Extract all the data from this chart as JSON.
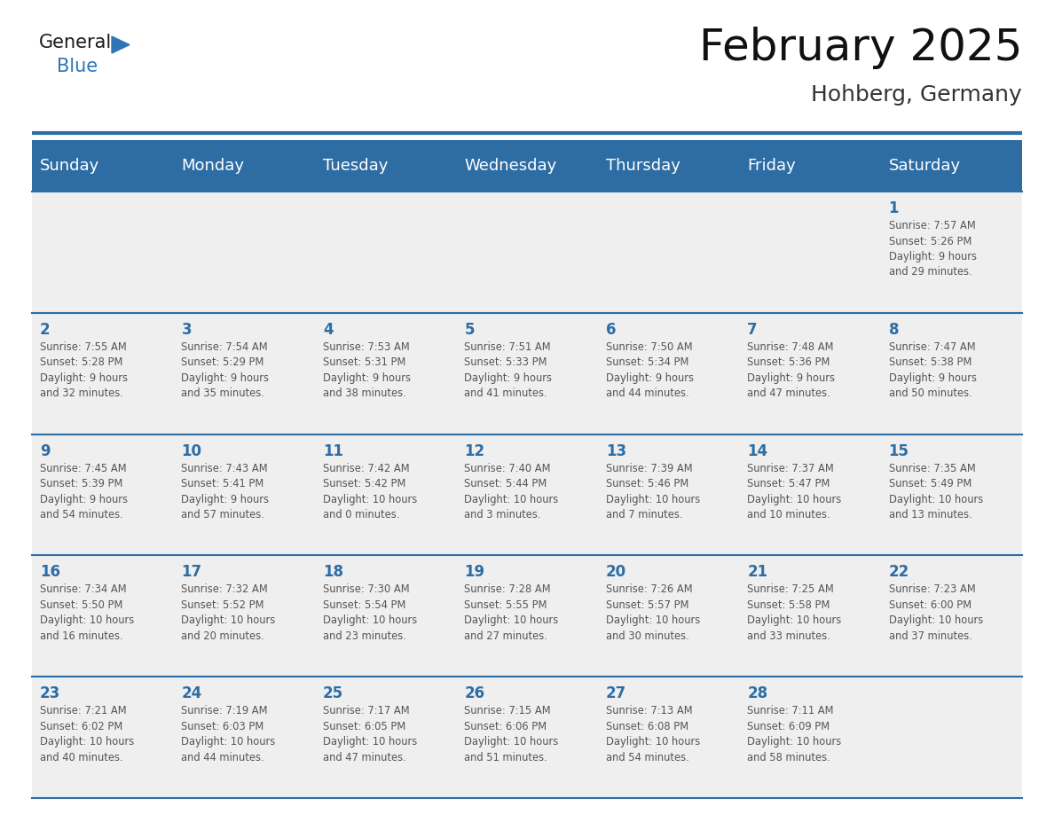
{
  "title": "February 2025",
  "subtitle": "Hohberg, Germany",
  "header_bg": "#2E6DA4",
  "header_text_color": "#FFFFFF",
  "header_font_size": 13,
  "day_names": [
    "Sunday",
    "Monday",
    "Tuesday",
    "Wednesday",
    "Thursday",
    "Friday",
    "Saturday"
  ],
  "title_font_size": 36,
  "subtitle_font_size": 18,
  "cell_bg": "#EFEFEF",
  "day_num_color": "#2E6DA4",
  "text_color": "#555555",
  "line_color": "#2E6DA4",
  "logo_general_color": "#1a1a1a",
  "logo_blue_color": "#2E75B6",
  "weeks": [
    [
      {
        "day": null,
        "info": null
      },
      {
        "day": null,
        "info": null
      },
      {
        "day": null,
        "info": null
      },
      {
        "day": null,
        "info": null
      },
      {
        "day": null,
        "info": null
      },
      {
        "day": null,
        "info": null
      },
      {
        "day": 1,
        "info": "Sunrise: 7:57 AM\nSunset: 5:26 PM\nDaylight: 9 hours\nand 29 minutes."
      }
    ],
    [
      {
        "day": 2,
        "info": "Sunrise: 7:55 AM\nSunset: 5:28 PM\nDaylight: 9 hours\nand 32 minutes."
      },
      {
        "day": 3,
        "info": "Sunrise: 7:54 AM\nSunset: 5:29 PM\nDaylight: 9 hours\nand 35 minutes."
      },
      {
        "day": 4,
        "info": "Sunrise: 7:53 AM\nSunset: 5:31 PM\nDaylight: 9 hours\nand 38 minutes."
      },
      {
        "day": 5,
        "info": "Sunrise: 7:51 AM\nSunset: 5:33 PM\nDaylight: 9 hours\nand 41 minutes."
      },
      {
        "day": 6,
        "info": "Sunrise: 7:50 AM\nSunset: 5:34 PM\nDaylight: 9 hours\nand 44 minutes."
      },
      {
        "day": 7,
        "info": "Sunrise: 7:48 AM\nSunset: 5:36 PM\nDaylight: 9 hours\nand 47 minutes."
      },
      {
        "day": 8,
        "info": "Sunrise: 7:47 AM\nSunset: 5:38 PM\nDaylight: 9 hours\nand 50 minutes."
      }
    ],
    [
      {
        "day": 9,
        "info": "Sunrise: 7:45 AM\nSunset: 5:39 PM\nDaylight: 9 hours\nand 54 minutes."
      },
      {
        "day": 10,
        "info": "Sunrise: 7:43 AM\nSunset: 5:41 PM\nDaylight: 9 hours\nand 57 minutes."
      },
      {
        "day": 11,
        "info": "Sunrise: 7:42 AM\nSunset: 5:42 PM\nDaylight: 10 hours\nand 0 minutes."
      },
      {
        "day": 12,
        "info": "Sunrise: 7:40 AM\nSunset: 5:44 PM\nDaylight: 10 hours\nand 3 minutes."
      },
      {
        "day": 13,
        "info": "Sunrise: 7:39 AM\nSunset: 5:46 PM\nDaylight: 10 hours\nand 7 minutes."
      },
      {
        "day": 14,
        "info": "Sunrise: 7:37 AM\nSunset: 5:47 PM\nDaylight: 10 hours\nand 10 minutes."
      },
      {
        "day": 15,
        "info": "Sunrise: 7:35 AM\nSunset: 5:49 PM\nDaylight: 10 hours\nand 13 minutes."
      }
    ],
    [
      {
        "day": 16,
        "info": "Sunrise: 7:34 AM\nSunset: 5:50 PM\nDaylight: 10 hours\nand 16 minutes."
      },
      {
        "day": 17,
        "info": "Sunrise: 7:32 AM\nSunset: 5:52 PM\nDaylight: 10 hours\nand 20 minutes."
      },
      {
        "day": 18,
        "info": "Sunrise: 7:30 AM\nSunset: 5:54 PM\nDaylight: 10 hours\nand 23 minutes."
      },
      {
        "day": 19,
        "info": "Sunrise: 7:28 AM\nSunset: 5:55 PM\nDaylight: 10 hours\nand 27 minutes."
      },
      {
        "day": 20,
        "info": "Sunrise: 7:26 AM\nSunset: 5:57 PM\nDaylight: 10 hours\nand 30 minutes."
      },
      {
        "day": 21,
        "info": "Sunrise: 7:25 AM\nSunset: 5:58 PM\nDaylight: 10 hours\nand 33 minutes."
      },
      {
        "day": 22,
        "info": "Sunrise: 7:23 AM\nSunset: 6:00 PM\nDaylight: 10 hours\nand 37 minutes."
      }
    ],
    [
      {
        "day": 23,
        "info": "Sunrise: 7:21 AM\nSunset: 6:02 PM\nDaylight: 10 hours\nand 40 minutes."
      },
      {
        "day": 24,
        "info": "Sunrise: 7:19 AM\nSunset: 6:03 PM\nDaylight: 10 hours\nand 44 minutes."
      },
      {
        "day": 25,
        "info": "Sunrise: 7:17 AM\nSunset: 6:05 PM\nDaylight: 10 hours\nand 47 minutes."
      },
      {
        "day": 26,
        "info": "Sunrise: 7:15 AM\nSunset: 6:06 PM\nDaylight: 10 hours\nand 51 minutes."
      },
      {
        "day": 27,
        "info": "Sunrise: 7:13 AM\nSunset: 6:08 PM\nDaylight: 10 hours\nand 54 minutes."
      },
      {
        "day": 28,
        "info": "Sunrise: 7:11 AM\nSunset: 6:09 PM\nDaylight: 10 hours\nand 58 minutes."
      },
      {
        "day": null,
        "info": null
      }
    ]
  ]
}
